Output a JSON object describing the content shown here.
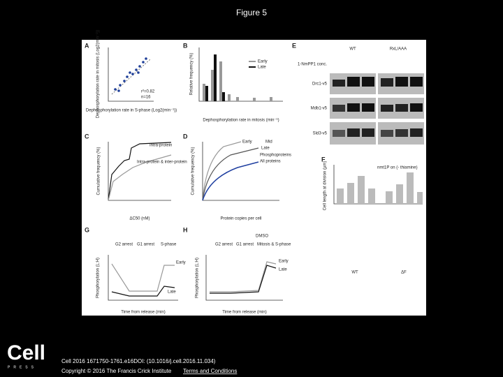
{
  "header": {
    "title": "Figure 5"
  },
  "figure": {
    "panels": [
      {
        "label": "A",
        "texts": [
          "Dephosphorylation rate in mitosis (Log2(min⁻¹))",
          "Dephosphorylation rate in S-phase (Log2(min⁻¹))",
          "r²=0.82",
          "n=16"
        ]
      },
      {
        "label": "B",
        "texts": [
          "Relative frequency (%)",
          "Dephosphorylation rate in mitosis (min⁻¹)",
          "Early",
          "Late"
        ]
      },
      {
        "label": "E",
        "texts": [
          "WT",
          "RxL/AAA",
          "1-NmPP1 conc.",
          "Drc1-v5",
          "Mdb1-v5",
          "Sld3-v5"
        ]
      },
      {
        "label": "C",
        "texts": [
          "Cumulative frequency (%)",
          "Intra-protein",
          "Intra-protein & inter-protein",
          "ΔC50 (nM)"
        ]
      },
      {
        "label": "D",
        "texts": [
          "Cumulative frequency (%)",
          "Early",
          "Mid",
          "Late",
          "Phosphoproteins",
          "All proteins",
          "Protein copies per cell"
        ]
      },
      {
        "label": "F",
        "texts": [
          "Cell length at division (µm)",
          "nmt1P on (- thiamine)",
          "WT",
          "ΔF"
        ]
      },
      {
        "label": "G",
        "texts": [
          "Phosphorylation (L:H)",
          "Time from release (min)",
          "G2 arrest",
          "G1 arrest",
          "S-phase",
          "Early",
          "Late"
        ]
      },
      {
        "label": "H",
        "texts": [
          "Phosphorylation (L:H)",
          "Time from release (min)",
          "G2 arrest",
          "G1 arrest",
          "Mitosis & S-phase",
          "DMSO",
          "Early",
          "Late"
        ]
      }
    ]
  },
  "footer": {
    "logo": "Cell",
    "logo_sub": "PRESS",
    "citation": "Cell 2016 1671750-1761.e16DOI: (10.1016/j.cell.2016.11.034)",
    "copyright": "Copyright © 2016 The Francis Crick Institute",
    "link": "Terms and Conditions"
  }
}
